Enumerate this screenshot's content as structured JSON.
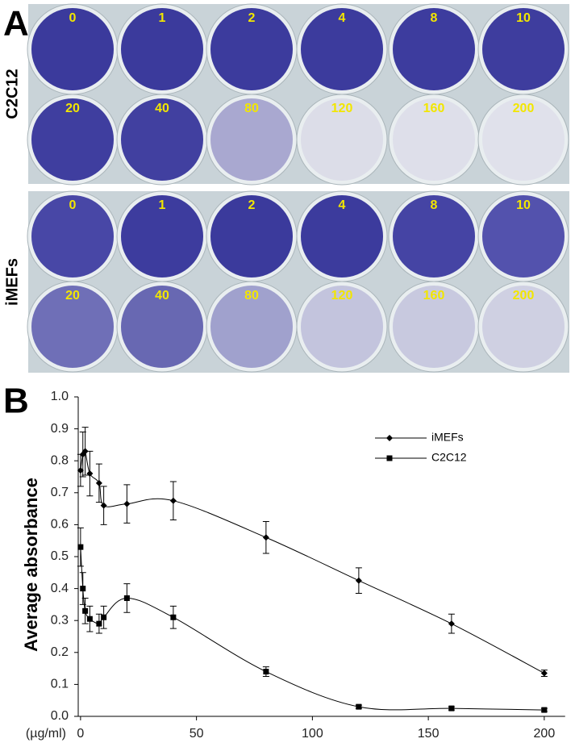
{
  "panel_a": {
    "label": "A",
    "plates": [
      {
        "name": "C2C12",
        "wells": [
          "0",
          "1",
          "2",
          "4",
          "8",
          "10",
          "20",
          "40",
          "80",
          "120",
          "160",
          "200"
        ],
        "colors": [
          "#3b3a9c",
          "#3b3a9c",
          "#3c3b9d",
          "#3c3b9d",
          "#3d3c9e",
          "#3e3d9e",
          "#3f3e9f",
          "#4140a0",
          "#a9a8d0",
          "#dcdde8",
          "#dedfea",
          "#e0e1eb"
        ]
      },
      {
        "name": "iMEFs",
        "wells": [
          "0",
          "1",
          "2",
          "4",
          "8",
          "10",
          "20",
          "40",
          "80",
          "120",
          "160",
          "200"
        ],
        "colors": [
          "#4847a6",
          "#3d3c9e",
          "#3b3a9c",
          "#3c3b9d",
          "#4544a4",
          "#5352ad",
          "#6f6fb7",
          "#6868b2",
          "#a0a1cd",
          "#c3c4dd",
          "#c8c9df",
          "#cfd0e2"
        ]
      }
    ]
  },
  "chart_data": {
    "type": "line",
    "panel_label": "B",
    "x_label": "(µg/ml)",
    "y_label": "Average absorbance",
    "x": [
      0,
      1,
      2,
      4,
      8,
      10,
      20,
      40,
      80,
      120,
      160,
      200
    ],
    "xlim": [
      -1,
      209
    ],
    "xticks": [
      0,
      50,
      100,
      150,
      200
    ],
    "ylim": [
      0,
      1
    ],
    "yticks": [
      {
        "value": 0,
        "label": "0.0"
      },
      0.1,
      0.2,
      0.3,
      0.4,
      0.5,
      0.6,
      0.7,
      0.8,
      0.9,
      {
        "value": 1,
        "label": "1.0"
      }
    ],
    "legend": "upper right",
    "smooth": true,
    "series": [
      {
        "name": "iMEFs",
        "color": "#000000",
        "marker": "diamond",
        "values": [
          0.77,
          0.82,
          0.83,
          0.76,
          0.73,
          0.66,
          0.665,
          0.675,
          0.56,
          0.425,
          0.29,
          0.135
        ],
        "errors": [
          0.05,
          0.07,
          0.075,
          0.07,
          0.06,
          0.06,
          0.06,
          0.06,
          0.05,
          0.04,
          0.03,
          0.01
        ]
      },
      {
        "name": "C2C12",
        "color": "#000000",
        "marker": "square",
        "values": [
          0.53,
          0.4,
          0.33,
          0.305,
          0.29,
          0.31,
          0.37,
          0.31,
          0.14,
          0.03,
          0.025,
          0.02
        ],
        "errors": [
          0.06,
          0.05,
          0.04,
          0.04,
          0.03,
          0.035,
          0.045,
          0.035,
          0.015,
          0.005,
          0.005,
          0.005
        ]
      }
    ]
  }
}
